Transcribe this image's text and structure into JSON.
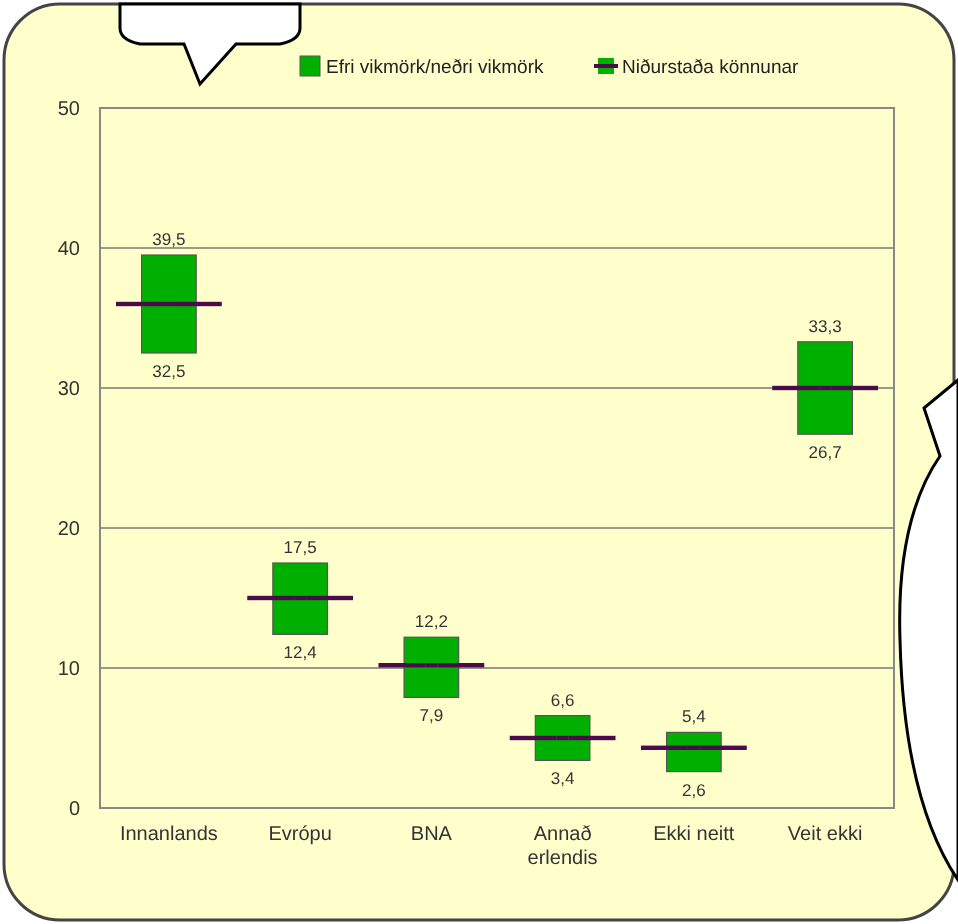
{
  "chart_data": {
    "type": "bar",
    "categories": [
      "Innanlands",
      "Evrópu",
      "BNA",
      "Annað erlendis",
      "Ekki neitt",
      "Veit ekki"
    ],
    "series": [
      {
        "type": "bar",
        "name": "Efri vikmörk/neðri vikmörk",
        "color": "#00b000",
        "base": [
          32.5,
          12.4,
          7.9,
          3.4,
          2.6,
          26.7
        ],
        "values": [
          7.0,
          5.1,
          4.3,
          3.2,
          2.8,
          6.6
        ]
      },
      {
        "type": "scatter",
        "name": "Niðurstaða könnunar",
        "color": "#4b0a4b",
        "values": [
          36,
          15,
          10.2,
          5,
          4.3,
          30
        ]
      }
    ],
    "annotations": [
      {
        "text": "39,5",
        "x": "Innanlands",
        "y": 39.5
      },
      {
        "text": "32,5",
        "x": "Innanlands",
        "y": 32.5
      },
      {
        "text": "17,5",
        "x": "Evrópu",
        "y": 17.5
      },
      {
        "text": "12,4",
        "x": "Evrópu",
        "y": 12.4
      },
      {
        "text": "12,2",
        "x": "BNA",
        "y": 12.2
      },
      {
        "text": "7,9",
        "x": "BNA",
        "y": 7.9
      },
      {
        "text": "6,6",
        "x": "Annað erlendis",
        "y": 6.6
      },
      {
        "text": "3,4",
        "x": "Annað erlendis",
        "y": 3.4
      },
      {
        "text": "5,4",
        "x": "Ekki neitt",
        "y": 5.4
      },
      {
        "text": "2,6",
        "x": "Ekki neitt",
        "y": 2.6
      },
      {
        "text": "33,3",
        "x": "Veit ekki",
        "y": 33.3
      },
      {
        "text": "26,7",
        "x": "Veit ekki",
        "y": 26.7
      }
    ],
    "ylim": [
      0,
      50
    ],
    "yticks": [
      0,
      10,
      20,
      30,
      40,
      50
    ],
    "grid": "y",
    "legend": "top"
  }
}
